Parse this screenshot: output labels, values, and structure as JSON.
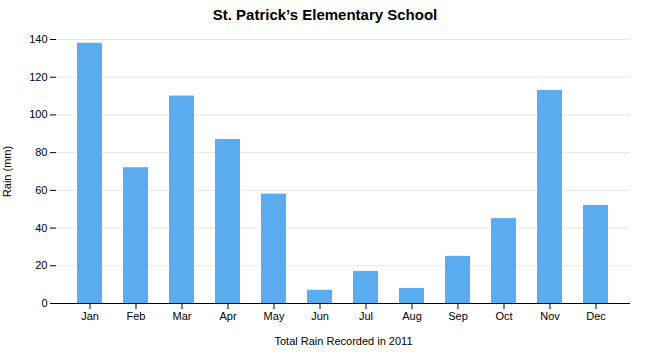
{
  "chart_data": {
    "type": "bar",
    "title": "St. Patrick’s Elementary School",
    "xlabel": "Total Rain Recorded in 2011",
    "ylabel": "Rain (mm)",
    "categories": [
      "Jan",
      "Feb",
      "Mar",
      "Apr",
      "May",
      "Jun",
      "Jul",
      "Aug",
      "Sep",
      "Oct",
      "Nov",
      "Dec"
    ],
    "values": [
      138,
      72,
      110,
      87,
      58,
      7,
      17,
      8,
      25,
      45,
      113,
      52
    ],
    "color": "#5aabf0",
    "ylim": [
      0,
      140
    ],
    "yticks": [
      0,
      20,
      40,
      60,
      80,
      100,
      120,
      140
    ],
    "grid": true
  }
}
